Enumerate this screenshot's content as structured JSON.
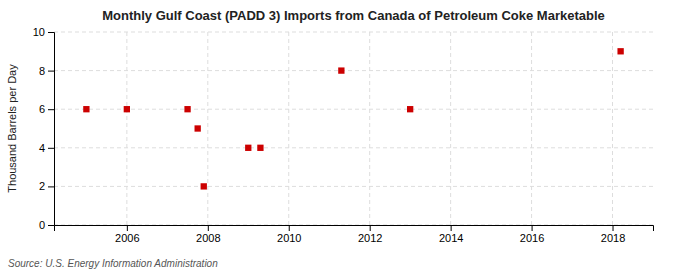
{
  "chart_data": {
    "type": "scatter",
    "title": "Monthly Gulf Coast (PADD 3) Imports from Canada of Petroleum Coke Marketable",
    "ylabel": "Thousand Barrels per Day",
    "annotations": [
      "Source: U.S. Energy Information Administration"
    ],
    "x": [
      2005.0,
      2006.0,
      2007.5,
      2007.75,
      2007.9,
      2009.0,
      2009.3,
      2011.3,
      2013.0,
      2018.2
    ],
    "values": [
      6,
      6,
      6,
      5,
      2,
      4,
      4,
      8,
      6,
      9
    ],
    "xlim": [
      2004.2,
      2019.0
    ],
    "ylim": [
      0,
      10
    ],
    "xticks": [
      2006,
      2008,
      2010,
      2012,
      2014,
      2016,
      2018
    ],
    "yticks": [
      0,
      2,
      4,
      6,
      8,
      10
    ],
    "color": "#cc0000",
    "marker": "square",
    "grid": true
  }
}
